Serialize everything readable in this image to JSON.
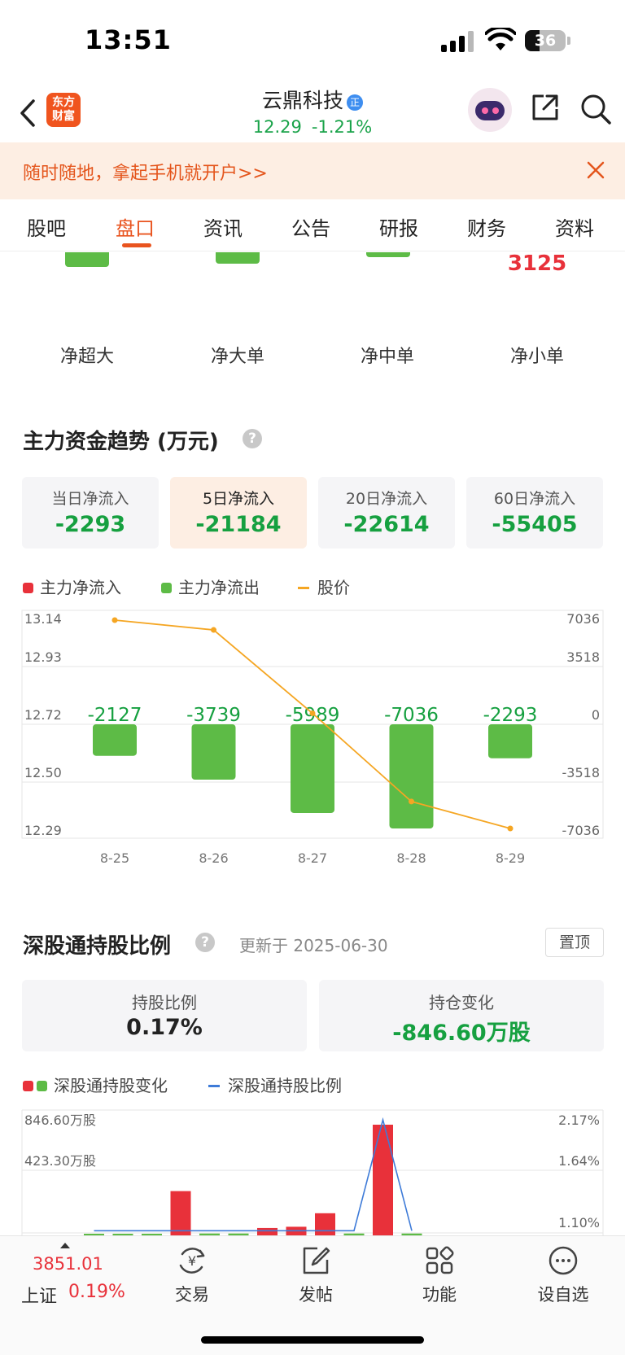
{
  "status": {
    "time": "13:51",
    "battery": "36"
  },
  "header": {
    "logo_line1": "东方",
    "logo_line2": "财富",
    "stock_name": "云鼎科技",
    "badge": "正",
    "price": "12.29",
    "change": "-1.21%"
  },
  "banner": {
    "text": "随时随地，拿起手机就开户>>"
  },
  "tabs": [
    {
      "label": "股吧"
    },
    {
      "label": "盘口"
    },
    {
      "label": "资讯"
    },
    {
      "label": "公告"
    },
    {
      "label": "研报"
    },
    {
      "label": "财务"
    },
    {
      "label": "资料"
    }
  ],
  "net_flow_top": {
    "labels": [
      "净超大",
      "净大单",
      "净中单",
      "净小单"
    ],
    "small_value": "3125"
  },
  "trend": {
    "title": "主力资金趋势 (万元)",
    "help": "?",
    "cards": [
      {
        "label": "当日净流入",
        "value": "-2293"
      },
      {
        "label": "5日净流入",
        "value": "-21184"
      },
      {
        "label": "20日净流入",
        "value": "-22614"
      },
      {
        "label": "60日净流入",
        "value": "-55405"
      }
    ],
    "legend": {
      "inflow": "主力净流入",
      "outflow": "主力净流出",
      "price": "股价"
    }
  },
  "chart_data": [
    {
      "type": "bar",
      "categories": [
        "8-25",
        "8-26",
        "8-27",
        "8-28",
        "8-29"
      ],
      "series": [
        {
          "name": "主力净流入",
          "values": [
            -2127,
            -3739,
            -5989,
            -7036,
            -2293
          ]
        },
        {
          "name": "股价",
          "type": "line",
          "values": [
            13.14,
            13.1,
            12.76,
            12.4,
            12.29
          ]
        }
      ],
      "data_labels": [
        "-2127",
        "-3739",
        "-5989",
        "-7036",
        "-2293"
      ],
      "left_ticks": [
        "13.14",
        "12.93",
        "12.72",
        "12.50",
        "12.29"
      ],
      "right_ticks": [
        "7036",
        "3518",
        "0",
        "-3518",
        "-7036"
      ],
      "ylim_left": [
        12.29,
        13.14
      ],
      "ylim_right": [
        -7036,
        7036
      ],
      "colors": {
        "inflow": "#e8313a",
        "outflow": "#5dbb46",
        "price": "#f5a623"
      }
    },
    {
      "type": "bar",
      "series": [
        {
          "name": "深股通持股变化",
          "values": [
            0,
            0,
            0,
            360,
            15,
            15,
            60,
            70,
            180,
            15,
            900,
            15
          ]
        },
        {
          "name": "深股通持股比例",
          "type": "line",
          "values": [
            1.0,
            1.0,
            1.0,
            1.0,
            1.0,
            1.0,
            1.0,
            1.0,
            1.0,
            1.0,
            2.2,
            1.0
          ]
        }
      ],
      "left_ticks": [
        "846.60万股",
        "423.30万股"
      ],
      "right_ticks": [
        "2.17%",
        "1.64%",
        "1.10%"
      ],
      "colors": {
        "increase": "#e8313a",
        "decrease": "#5dbb46",
        "ratio": "#3e7bd8"
      }
    }
  ],
  "hk": {
    "title": "深股通持股比例",
    "help": "?",
    "updated": "更新于 2025-06-30",
    "pin": "置顶",
    "hold_label": "持股比例",
    "hold_value": "0.17%",
    "change_label": "持仓变化",
    "change_value": "-846.60万股",
    "legend_change": "深股通持股变化",
    "legend_ratio": "深股通持股比例"
  },
  "bottom": {
    "index_value": "3851.01",
    "index_name": "上证",
    "index_pct": "0.19%",
    "nav": [
      {
        "label": "交易",
        "icon": "trade-icon"
      },
      {
        "label": "发帖",
        "icon": "post-icon"
      },
      {
        "label": "功能",
        "icon": "apps-icon"
      },
      {
        "label": "设自选",
        "icon": "watchlist-icon"
      }
    ]
  }
}
